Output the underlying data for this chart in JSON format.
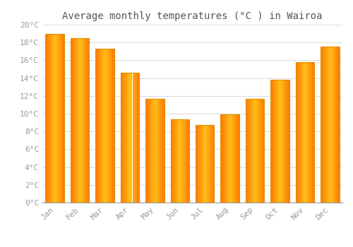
{
  "title": "Average monthly temperatures (°C ) in Wairoa",
  "months": [
    "Jan",
    "Feb",
    "Mar",
    "Apr",
    "May",
    "Jun",
    "Jul",
    "Aug",
    "Sep",
    "Oct",
    "Nov",
    "Dec"
  ],
  "values": [
    19.0,
    18.5,
    17.3,
    14.6,
    11.7,
    9.4,
    8.7,
    9.9,
    11.7,
    13.8,
    15.8,
    17.5
  ],
  "bar_color_center": "#FFD966",
  "bar_color_edge": "#F5A800",
  "bar_outline_color": "#E09000",
  "background_color": "#FFFFFF",
  "grid_color": "#CCCCCC",
  "ylim": [
    0,
    20
  ],
  "ytick_step": 2,
  "title_fontsize": 10,
  "tick_fontsize": 8,
  "tick_label_color": "#999999",
  "title_color": "#555555",
  "bar_width": 0.75
}
